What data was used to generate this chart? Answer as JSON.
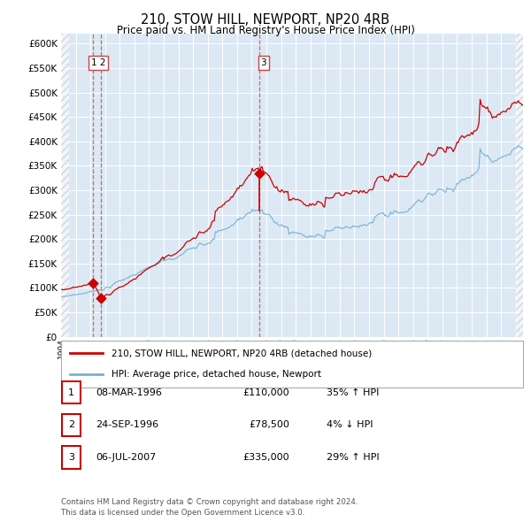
{
  "title": "210, STOW HILL, NEWPORT, NP20 4RB",
  "subtitle": "Price paid vs. HM Land Registry's House Price Index (HPI)",
  "legend_line1": "210, STOW HILL, NEWPORT, NP20 4RB (detached house)",
  "legend_line2": "HPI: Average price, detached house, Newport",
  "footer1": "Contains HM Land Registry data © Crown copyright and database right 2024.",
  "footer2": "This data is licensed under the Open Government Licence v3.0.",
  "transactions": [
    {
      "num": 1,
      "date": "08-MAR-1996",
      "price": 110000,
      "pct": "35%",
      "dir": "↑",
      "year": 1996.19
    },
    {
      "num": 2,
      "date": "24-SEP-1996",
      "price": 78500,
      "pct": "4%",
      "dir": "↓",
      "year": 1996.73
    },
    {
      "num": 3,
      "date": "06-JUL-2007",
      "price": 335000,
      "pct": "29%",
      "dir": "↑",
      "year": 2007.51
    }
  ],
  "t1_year": 1996.19,
  "t2_year": 1996.73,
  "t3_year": 2007.51,
  "t1_price": 110000,
  "t2_price": 78500,
  "t3_price": 335000,
  "ylim_max": 600000,
  "bg_color": "#dce9f5",
  "fig_bg": "#ffffff",
  "line_color_red": "#cc0000",
  "line_color_blue": "#7ab0d4",
  "vline_color": "#cc4444",
  "grid_color": "#ffffff",
  "legend_border": "#aaaaaa",
  "table_border": "#cc0000",
  "footer_color": "#555555"
}
